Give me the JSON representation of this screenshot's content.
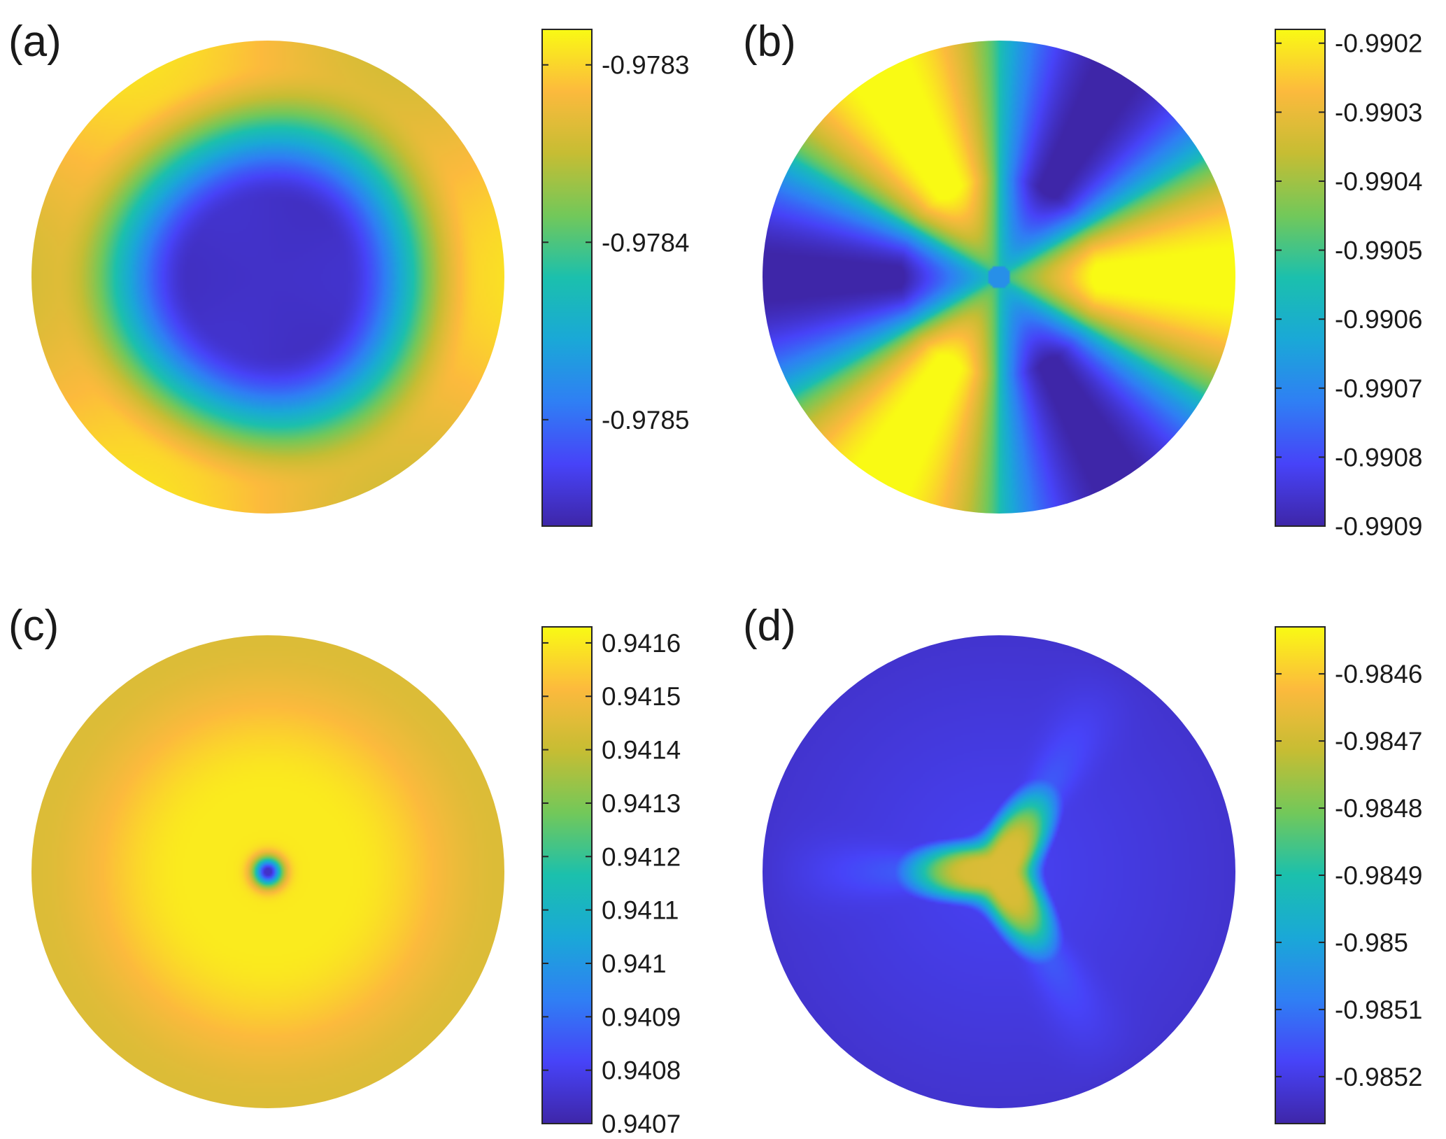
{
  "colors": {
    "parula": [
      "#3e26a8",
      "#4743f8",
      "#2f7ff4",
      "#1aa8d7",
      "#1bc0ad",
      "#72c85a",
      "#c6bd33",
      "#fcba3d",
      "#f9fa14"
    ]
  },
  "chart_data": [
    {
      "type": "heatmap",
      "panel": "(a)",
      "pattern": "ring-dark-center",
      "clim": [
        -0.97856,
        -0.97828
      ],
      "colorbar_ticks": [
        -0.9785,
        -0.9784,
        -0.9783
      ],
      "colorbar_tick_labels": [
        "-0.9785",
        "-0.9784",
        "-0.9783"
      ]
    },
    {
      "type": "heatmap",
      "panel": "(b)",
      "pattern": "threefold-yellow-lobes",
      "clim": [
        -0.9909,
        -0.99018
      ],
      "colorbar_ticks": [
        -0.9909,
        -0.9908,
        -0.9907,
        -0.9906,
        -0.9905,
        -0.9904,
        -0.9903,
        -0.9902
      ],
      "colorbar_tick_labels": [
        "-0.9909",
        "-0.9908",
        "-0.9907",
        "-0.9906",
        "-0.9905",
        "-0.9904",
        "-0.9903",
        "-0.9902"
      ]
    },
    {
      "type": "heatmap",
      "panel": "(c)",
      "pattern": "radial-bright-with-central-dip",
      "clim": [
        0.9407,
        0.94163
      ],
      "colorbar_ticks": [
        0.9407,
        0.9408,
        0.9409,
        0.941,
        0.9411,
        0.9412,
        0.9413,
        0.9414,
        0.9415,
        0.9416
      ],
      "colorbar_tick_labels": [
        "0.9407",
        "0.9408",
        "0.9409",
        "0.941",
        "0.9411",
        "0.9412",
        "0.9413",
        "0.9414",
        "0.9415",
        "0.9416"
      ]
    },
    {
      "type": "heatmap",
      "panel": "(d)",
      "pattern": "central-triangle",
      "clim": [
        -0.98527,
        -0.98453
      ],
      "colorbar_ticks": [
        -0.9852,
        -0.9851,
        -0.985,
        -0.9849,
        -0.9848,
        -0.9847,
        -0.9846
      ],
      "colorbar_tick_labels": [
        "-0.9852",
        "-0.9851",
        "-0.985",
        "-0.9849",
        "-0.9848",
        "-0.9847",
        "-0.9846"
      ]
    }
  ]
}
